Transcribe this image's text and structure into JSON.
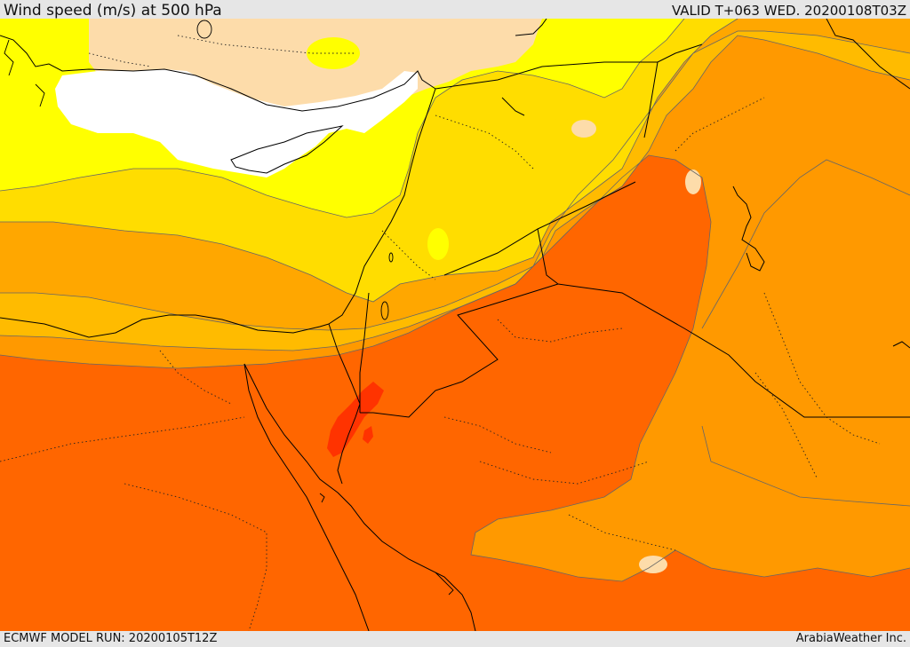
{
  "header": {
    "title": "Wind speed (m/s) at 500 hPa",
    "valid": "VALID T+063 WED. 20200108T03Z"
  },
  "footer": {
    "model_run": "ECMWF MODEL RUN: 20200105T12Z",
    "credit": "ArabiaWeather Inc."
  },
  "colors": {
    "below_threshold": "#ffffff",
    "band_1": "#fddcaa",
    "band_2": "#ffff00",
    "band_3": "#ffdd00",
    "band_4": "#ffbb00",
    "band_5": "#ff9900",
    "band_6": "#ff6600",
    "band_7": "#ff3300"
  }
}
